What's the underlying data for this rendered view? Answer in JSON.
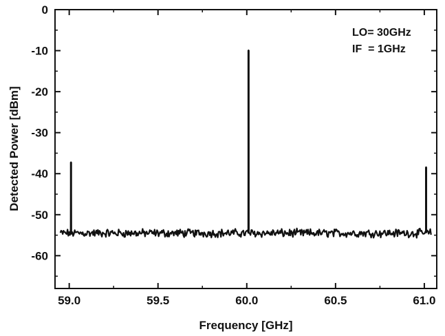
{
  "chart_data": {
    "type": "line",
    "title": "",
    "xlabel": "Frequency [GHz]",
    "ylabel": "Detected Power [dBm]",
    "xlim": [
      58.92,
      61.07
    ],
    "ylim": [
      -68,
      0
    ],
    "x_ticks": [
      59.0,
      59.5,
      60.0,
      60.5,
      61.0
    ],
    "x_tick_labels": [
      "59.0",
      "59.5",
      "60.0",
      "60.5",
      "61.0"
    ],
    "y_ticks": [
      0,
      -10,
      -20,
      -30,
      -40,
      -50,
      -60
    ],
    "y_tick_labels": [
      "0",
      "-10",
      "-20",
      "-30",
      "-40",
      "-50",
      "-60"
    ],
    "grid": false,
    "legend": "none",
    "annotations": [
      "LO= 30GHz",
      "IF  = 1GHz"
    ],
    "series": [
      {
        "noise_floor_dBm": -54.5,
        "x_range": [
          58.95,
          61.04
        ],
        "peaks": [
          {
            "x": 59.01,
            "y": -37.2
          },
          {
            "x": 60.01,
            "y": -9.9
          },
          {
            "x": 61.01,
            "y": -38.4
          }
        ]
      }
    ],
    "line_color": "#111111"
  }
}
